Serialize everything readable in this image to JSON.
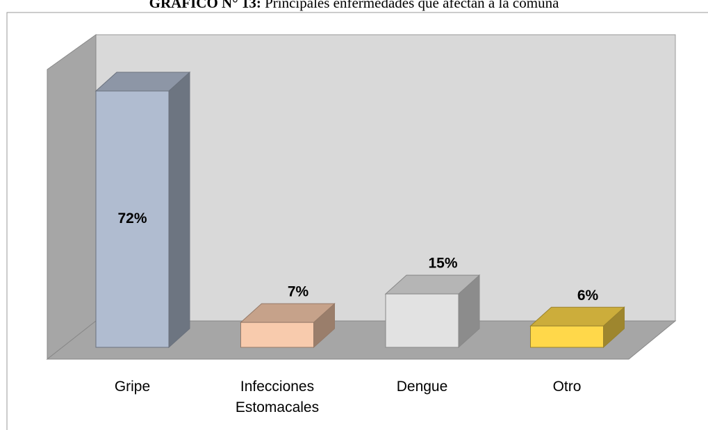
{
  "chart_data": {
    "type": "bar3d",
    "title_prefix": "GRÁFICO N° 13:",
    "title": "Principales enfermedades que afectan a la comuna",
    "categories": [
      "Gripe",
      "Infecciones Estomacales",
      "Dengue",
      "Otro"
    ],
    "values": [
      72,
      7,
      15,
      6
    ],
    "value_labels": [
      "72%",
      "7%",
      "15%",
      "6%"
    ],
    "colors": [
      "#b0bcd0",
      "#f8cbad",
      "#e2e2e2",
      "#ffd84a"
    ]
  }
}
